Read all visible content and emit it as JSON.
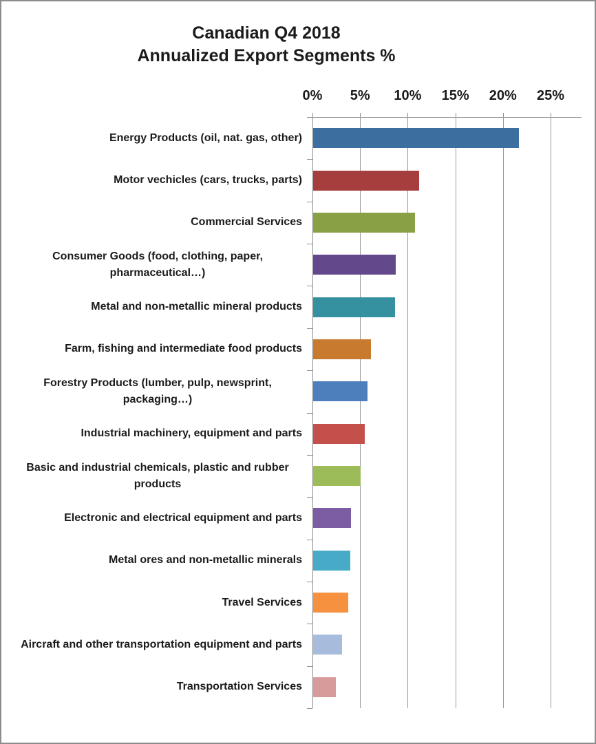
{
  "header": {
    "title_line1": "Canadian Q4 2018",
    "title_line2": "Annualized Export Segments %"
  },
  "chart_data": {
    "type": "bar",
    "orientation": "horizontal",
    "title": "Canadian Q4 2018 Annualized Export Segments %",
    "xlabel": "",
    "ylabel": "",
    "xlim": [
      0,
      25
    ],
    "x_ticks": [
      "0%",
      "5%",
      "10%",
      "15%",
      "20%",
      "25%"
    ],
    "x_tick_values": [
      0,
      5,
      10,
      15,
      20,
      25
    ],
    "grid": "vertical-on",
    "legend": "none",
    "categories": [
      "Energy Products (oil, nat. gas, other)",
      "Motor vechicles (cars, trucks, parts)",
      "Commercial Services",
      "Consumer Goods (food, clothing, paper, pharmaceutical…)",
      "Metal and non-metallic mineral products",
      "Farm, fishing and intermediate food products",
      "Forestry Products (lumber, pulp, newsprint, packaging…)",
      "Industrial machinery, equipment and parts",
      "Basic and industrial chemicals, plastic and rubber products",
      "Electronic and electrical equipment and parts",
      "Metal ores and non-metallic minerals",
      "Travel Services",
      "Aircraft and other transportation equipment and parts",
      "Transportation Services"
    ],
    "values": [
      21.6,
      11.1,
      10.7,
      8.7,
      8.6,
      6.1,
      5.7,
      5.4,
      5.0,
      4.0,
      3.9,
      3.7,
      3.0,
      2.4
    ],
    "bar_colors": [
      "#3C6E9F",
      "#A53E3C",
      "#89A144",
      "#63498B",
      "#35919F",
      "#C87A2E",
      "#4C7FBB",
      "#C4504C",
      "#9CBB59",
      "#7C5CA2",
      "#47ABC7",
      "#F5913F",
      "#A7BCDC",
      "#D89B9B"
    ],
    "axis_color": "#8C8C8C",
    "gridline_color": "#979797",
    "text_color": "#1B1B1B"
  }
}
